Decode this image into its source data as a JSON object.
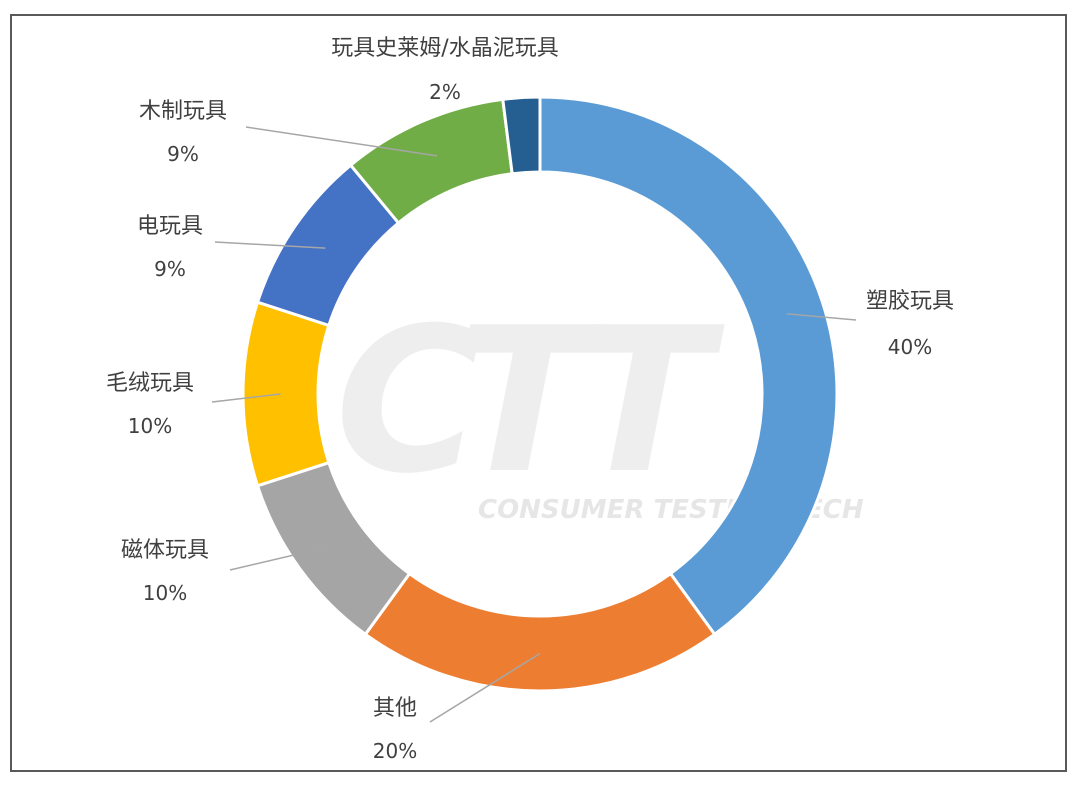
{
  "chart_data": {
    "type": "pie",
    "donut": true,
    "slices": [
      {
        "label": "塑胶玩具",
        "value": 40,
        "value_label": "40%",
        "color": "#5b9bd5"
      },
      {
        "label": "其他",
        "value": 20,
        "value_label": "20%",
        "color": "#ed7d31"
      },
      {
        "label": "磁体玩具",
        "value": 10,
        "value_label": "10%",
        "color": "#a5a5a5"
      },
      {
        "label": "毛绒玩具",
        "value": 10,
        "value_label": "10%",
        "color": "#ffc000"
      },
      {
        "label": "电玩具",
        "value": 9,
        "value_label": "9%",
        "color": "#4472c4"
      },
      {
        "label": "木制玩具",
        "value": 9,
        "value_label": "9%",
        "color": "#70ad47"
      },
      {
        "label": "玩具史莱姆/水晶泥玩具",
        "value": 2,
        "value_label": "2%",
        "color": "#255e91"
      }
    ],
    "start_angle_deg": 0,
    "direction": "clockwise",
    "legend": "none",
    "leader_line_color": "#a6a6a6"
  },
  "watermark": {
    "letters": [
      "C",
      "T",
      "T"
    ],
    "subtitle": "CONSUMER TESTING TECH"
  }
}
